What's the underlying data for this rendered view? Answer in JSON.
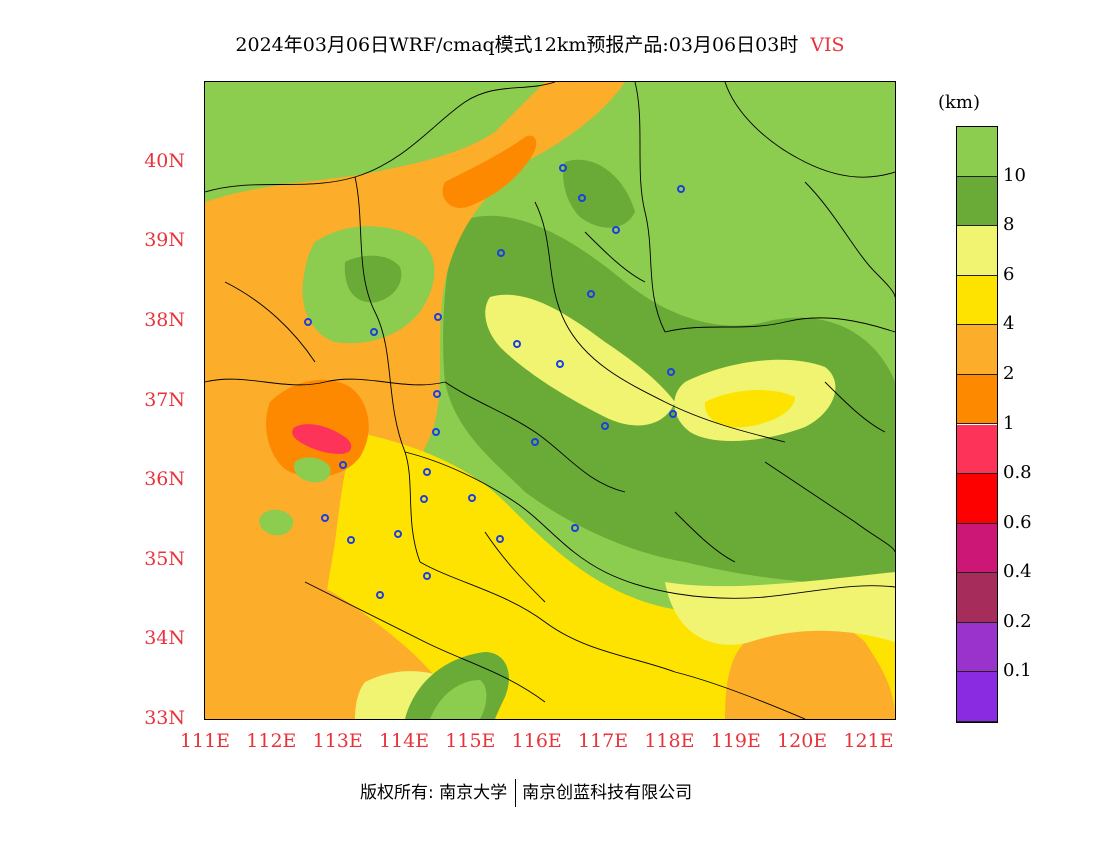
{
  "title": {
    "main": "2024年03月06日WRF/cmaq模式12km预报产品:03月06日03时",
    "variable": "VIS"
  },
  "map": {
    "lat_labels": [
      "40N",
      "39N",
      "38N",
      "37N",
      "36N",
      "35N",
      "34N",
      "33N"
    ],
    "lon_labels": [
      "111E",
      "112E",
      "113E",
      "114E",
      "115E",
      "116E",
      "117E",
      "118E",
      "119E",
      "120E",
      "121E"
    ],
    "lon_range": [
      111,
      121.4
    ],
    "lat_range": [
      33,
      41
    ]
  },
  "legend": {
    "unit": "(km)",
    "items": [
      {
        "label": "10",
        "color": "#8ccc4f"
      },
      {
        "label": "8",
        "color": "#6aab37"
      },
      {
        "label": "6",
        "color": "#f1f471"
      },
      {
        "label": "4",
        "color": "#fee300"
      },
      {
        "label": "2",
        "color": "#fcad29"
      },
      {
        "label": "1",
        "color": "#fd8900"
      },
      {
        "label": "0.8",
        "color": "#fd335a"
      },
      {
        "label": "0.6",
        "color": "#fd0000"
      },
      {
        "label": "0.4",
        "color": "#cc1777"
      },
      {
        "label": "0.2",
        "color": "#a62c5c"
      },
      {
        "label": "0.1",
        "color": "#9933cc"
      },
      {
        "label": "",
        "color": "#8a2be2"
      }
    ]
  },
  "footer": {
    "copyright": "版权所有: 南京大学",
    "company": "南京创蓝科技有限公司"
  }
}
